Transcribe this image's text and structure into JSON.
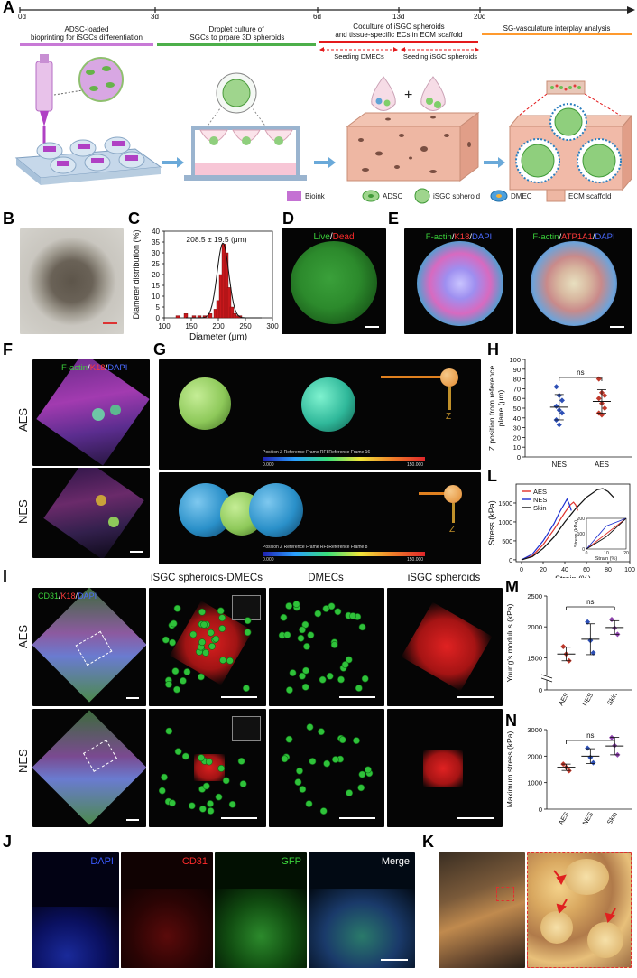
{
  "panels": {
    "A": "A",
    "B": "B",
    "C": "C",
    "D": "D",
    "E": "E",
    "F": "F",
    "G": "G",
    "H": "H",
    "I": "I",
    "J": "J",
    "K": "K",
    "L": "L",
    "M": "M",
    "N": "N"
  },
  "timeline": {
    "days": [
      "0d",
      "3d",
      "6d",
      "13d",
      "20d"
    ],
    "stages": [
      {
        "text": "ADSC-loaded\nbioprinting for iSGCs differentiation",
        "color": "#c879d6"
      },
      {
        "text": "Droplet culture of\niSGCs to prpare 3D spheroids",
        "color": "#4daf4a"
      },
      {
        "text": "Coculture of iSGC spheroids\nand tissue-specific ECs in ECM scaffold",
        "color": "#e41a1c"
      },
      {
        "text": "SG-vasculature interplay analysis",
        "color": "#ff9a2e"
      }
    ],
    "sub_seeding": [
      "Seeding DMECs",
      "Seeding iSGC spheroids"
    ]
  },
  "legendA": [
    "Bioink",
    "ADSC",
    "iSGC spheroid",
    "DMEC",
    "ECM scaffold"
  ],
  "panelC": {
    "annotation": "208.5 ± 19.5 (μm)"
  },
  "panelD": {
    "live": "Live",
    "sep": "/",
    "dead": "Dead"
  },
  "panelE": {
    "left": {
      "a": "F-actin",
      "b": "K18",
      "c": "DAPI"
    },
    "right": {
      "a": "F-actin",
      "b": "ATP1A1",
      "c": "DAPI"
    }
  },
  "panelF": {
    "stain": {
      "a": "F-actin",
      "b": "K18",
      "c": "DAPI"
    },
    "rows": [
      "AES",
      "NES"
    ]
  },
  "panelG": {
    "colorbar1": "Position Z Reference Frame RF8Reference Frame 16",
    "colorbar2": "Position Z Reference Frame RF8Reference Frame 8",
    "min1": "0.000",
    "max1": "150.000",
    "min2": "0.000",
    "max2": "150.000",
    "axis": "Z"
  },
  "panelI": {
    "cols": [
      "iSGC spheroids-DMECs",
      "DMECs",
      "iSGC spheroids"
    ],
    "stain": {
      "a": "CD31",
      "b": "K18",
      "c": "DAPI"
    },
    "rows": [
      "AES",
      "NES"
    ]
  },
  "panelJ": {
    "cols": [
      "DAPI",
      "CD31",
      "GFP",
      "Merge"
    ]
  },
  "chart_data": [
    {
      "panel": "C",
      "type": "bar",
      "xlabel": "Diameter (μm)",
      "ylabel": "Diameter distribution (%)",
      "xlim": [
        100,
        300
      ],
      "ylim": [
        0,
        40
      ],
      "xticks": [
        100,
        150,
        200,
        250,
        300
      ],
      "yticks": [
        0,
        5,
        10,
        15,
        20,
        25,
        30,
        35,
        40
      ],
      "bin_centers": [
        125,
        140,
        155,
        165,
        175,
        185,
        195,
        200,
        205,
        210,
        215,
        220,
        225,
        230,
        235,
        240
      ],
      "values": [
        1,
        2,
        1,
        1,
        1,
        2,
        4,
        8,
        20,
        34,
        30,
        14,
        5,
        2,
        1,
        1
      ],
      "fit_mean": 208.5,
      "fit_sd": 19.5
    },
    {
      "panel": "H",
      "type": "scatter",
      "ylabel": "Z position from reference plane (μm)",
      "categories": [
        "NES",
        "AES"
      ],
      "ylim": [
        0,
        100
      ],
      "yticks": [
        0,
        10,
        20,
        30,
        40,
        50,
        60,
        70,
        80,
        90,
        100
      ],
      "series": [
        {
          "values": [
            72,
            63,
            58,
            52,
            48,
            45,
            38,
            33
          ],
          "mean": 51,
          "sd": 13,
          "color": "#2d4fb5"
        },
        {
          "values": [
            80,
            66,
            63,
            60,
            55,
            50,
            45,
            43
          ],
          "mean": 57,
          "sd": 12,
          "color": "#c0392b"
        }
      ],
      "annotation": "ns"
    },
    {
      "panel": "L",
      "type": "line",
      "xlabel": "Strain (%)",
      "ylabel": "Stress (kPa)",
      "xlim": [
        -5,
        100
      ],
      "ylim": [
        -50,
        2000
      ],
      "xticks": [
        0,
        20,
        40,
        60,
        80,
        100
      ],
      "yticks": [
        0,
        500,
        1000,
        1500
      ],
      "series": [
        {
          "name": "AES",
          "color": "#e0302b",
          "x": [
            0,
            10,
            20,
            30,
            40,
            45,
            48,
            50,
            52
          ],
          "y": [
            0,
            100,
            400,
            800,
            1250,
            1450,
            1520,
            1450,
            1300
          ]
        },
        {
          "name": "NES",
          "color": "#1c2fd0",
          "x": [
            0,
            10,
            20,
            30,
            35,
            40,
            42,
            44,
            46
          ],
          "y": [
            0,
            150,
            500,
            950,
            1250,
            1500,
            1600,
            1480,
            1300
          ]
        },
        {
          "name": "Skin",
          "color": "#111111",
          "x": [
            0,
            10,
            20,
            30,
            40,
            50,
            60,
            70,
            75,
            80,
            85
          ],
          "y": [
            0,
            80,
            300,
            600,
            1000,
            1350,
            1650,
            1850,
            1880,
            1800,
            1650
          ]
        }
      ],
      "inset": {
        "xlabel": "Strain (%)",
        "ylabel": "Stress (kPa)",
        "xlim": [
          0,
          20
        ],
        "ylim": [
          0,
          200
        ],
        "xticks": [
          0,
          10,
          20
        ],
        "yticks": [
          0,
          100,
          200
        ]
      }
    },
    {
      "panel": "M",
      "type": "scatter",
      "ylabel": "Young's modulus (kPa)",
      "categories": [
        "AES",
        "NES",
        "Skin"
      ],
      "yticks": [
        0,
        1500,
        2000,
        2500
      ],
      "series": [
        {
          "values": [
            1680,
            1560,
            1450
          ],
          "mean": 1560,
          "sd": 110,
          "color": "#c0392b"
        },
        {
          "values": [
            2080,
            1780,
            1580
          ],
          "mean": 1800,
          "sd": 250,
          "color": "#2d4fb5"
        },
        {
          "values": [
            2120,
            1980,
            1880
          ],
          "mean": 1990,
          "sd": 110,
          "color": "#8e44ad"
        }
      ],
      "annotation": "ns"
    },
    {
      "panel": "N",
      "type": "scatter",
      "ylabel": "Maximum stress (kPa)",
      "categories": [
        "AES",
        "NES",
        "Skin"
      ],
      "ylim": [
        0,
        3000
      ],
      "yticks": [
        0,
        1000,
        2000,
        3000
      ],
      "series": [
        {
          "values": [
            1700,
            1580,
            1450
          ],
          "mean": 1580,
          "sd": 120,
          "color": "#c0392b"
        },
        {
          "values": [
            2300,
            1950,
            1750
          ],
          "mean": 2000,
          "sd": 280,
          "color": "#2d4fb5"
        },
        {
          "values": [
            2700,
            2400,
            2050
          ],
          "mean": 2380,
          "sd": 330,
          "color": "#8e44ad"
        }
      ],
      "annotation": "ns"
    }
  ]
}
